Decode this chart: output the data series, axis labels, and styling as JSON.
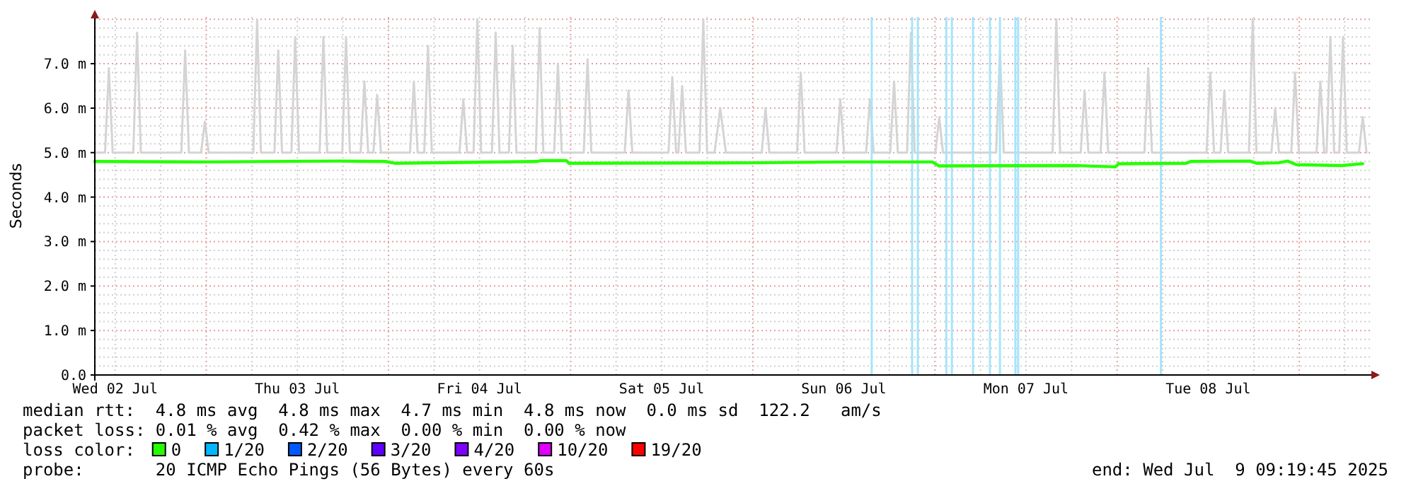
{
  "chart_data": {
    "type": "line",
    "ylabel": "Seconds",
    "legend_title": "loss color:",
    "legend": "bottom",
    "grid": true,
    "xlim": [
      "2025-07-02T09:19",
      "2025-07-09T09:19"
    ],
    "xticks": [
      {
        "value": "2025-07-02T12:00",
        "label": "Wed 02 Jul"
      },
      {
        "value": "2025-07-03T12:00",
        "label": "Thu 03 Jul"
      },
      {
        "value": "2025-07-04T12:00",
        "label": "Fri 04 Jul"
      },
      {
        "value": "2025-07-05T12:00",
        "label": "Sat 05 Jul"
      },
      {
        "value": "2025-07-06T12:00",
        "label": "Sun 06 Jul"
      },
      {
        "value": "2025-07-07T12:00",
        "label": "Mon 07 Jul"
      },
      {
        "value": "2025-07-08T12:00",
        "label": "Tue 08 Jul"
      }
    ],
    "ylim": [
      0,
      8.05
    ],
    "yticks": [
      {
        "value": 0,
        "label": "0.0"
      },
      {
        "value": 1,
        "label": "1.0 m"
      },
      {
        "value": 2,
        "label": "2.0 m"
      },
      {
        "value": 3,
        "label": "3.0 m"
      },
      {
        "value": 4,
        "label": "4.0 m"
      },
      {
        "value": 5,
        "label": "5.0 m"
      },
      {
        "value": 6,
        "label": "6.0 m"
      },
      {
        "value": 7,
        "label": "7.0 m"
      }
    ],
    "series": [
      {
        "color": "#d4d4d4",
        "x": [
          "2025-07-02T09:19",
          "2025-07-02T10:40",
          "2025-07-02T11:10",
          "2025-07-02T11:40",
          "2025-07-02T14:23",
          "2025-07-02T14:53",
          "2025-07-02T15:23",
          "2025-07-02T20:43",
          "2025-07-02T21:13",
          "2025-07-02T21:43",
          "2025-07-02T23:19",
          "2025-07-02T23:49",
          "2025-07-03T00:19",
          "2025-07-03T06:12",
          "2025-07-03T06:42",
          "2025-07-03T07:12",
          "2025-07-03T08:59",
          "2025-07-03T09:29",
          "2025-07-03T09:59",
          "2025-07-03T11:13",
          "2025-07-03T11:43",
          "2025-07-03T12:13",
          "2025-07-03T14:56",
          "2025-07-03T15:26",
          "2025-07-03T15:56",
          "2025-07-03T17:55",
          "2025-07-03T18:25",
          "2025-07-03T18:55",
          "2025-07-03T20:20",
          "2025-07-03T20:50",
          "2025-07-03T21:20",
          "2025-07-03T22:01",
          "2025-07-03T22:31",
          "2025-07-03T23:01",
          "2025-07-04T02:51",
          "2025-07-04T03:21",
          "2025-07-04T03:51",
          "2025-07-04T04:43",
          "2025-07-04T05:13",
          "2025-07-04T05:43",
          "2025-07-04T09:22",
          "2025-07-04T09:52",
          "2025-07-04T10:22",
          "2025-07-04T11:13",
          "2025-07-04T11:43",
          "2025-07-04T12:13",
          "2025-07-04T13:38",
          "2025-07-04T14:08",
          "2025-07-04T14:38",
          "2025-07-04T15:52",
          "2025-07-04T16:22",
          "2025-07-04T16:52",
          "2025-07-04T19:25",
          "2025-07-04T19:55",
          "2025-07-04T20:25",
          "2025-07-04T21:50",
          "2025-07-04T22:20",
          "2025-07-04T22:50",
          "2025-07-05T01:44",
          "2025-07-05T02:14",
          "2025-07-05T02:44",
          "2025-07-05T07:08",
          "2025-07-05T07:38",
          "2025-07-05T08:08",
          "2025-07-05T12:54",
          "2025-07-05T13:24",
          "2025-07-05T13:54",
          "2025-07-05T14:12",
          "2025-07-05T14:42",
          "2025-07-05T15:12",
          "2025-07-05T16:59",
          "2025-07-05T17:29",
          "2025-07-05T17:59",
          "2025-07-05T18:58",
          "2025-07-05T19:43",
          "2025-07-05T20:28",
          "2025-07-06T01:11",
          "2025-07-06T01:41",
          "2025-07-06T02:11",
          "2025-07-06T05:50",
          "2025-07-06T06:20",
          "2025-07-06T06:50",
          "2025-07-06T11:02",
          "2025-07-06T11:32",
          "2025-07-06T12:02",
          "2025-07-06T14:56",
          "2025-07-06T15:26",
          "2025-07-06T15:56",
          "2025-07-06T18:07",
          "2025-07-06T18:37",
          "2025-07-06T19:07",
          "2025-07-06T20:20",
          "2025-07-06T20:50",
          "2025-07-06T21:20",
          "2025-07-07T00:04",
          "2025-07-07T00:34",
          "2025-07-07T01:04",
          "2025-07-07T08:04",
          "2025-07-07T08:34",
          "2025-07-07T09:04",
          "2025-07-07T15:30",
          "2025-07-07T16:00",
          "2025-07-07T16:30",
          "2025-07-07T19:13",
          "2025-07-07T19:43",
          "2025-07-07T20:13",
          "2025-07-07T21:50",
          "2025-07-07T22:20",
          "2025-07-07T22:50",
          "2025-07-08T03:36",
          "2025-07-08T04:06",
          "2025-07-08T04:36",
          "2025-07-08T11:47",
          "2025-07-08T12:17",
          "2025-07-08T12:47",
          "2025-07-08T13:38",
          "2025-07-08T14:08",
          "2025-07-08T14:38",
          "2025-07-08T17:22",
          "2025-07-08T17:52",
          "2025-07-08T18:22",
          "2025-07-08T20:20",
          "2025-07-08T20:50",
          "2025-07-08T21:20",
          "2025-07-08T22:57",
          "2025-07-08T23:27",
          "2025-07-08T23:57",
          "2025-07-09T02:17",
          "2025-07-09T02:47",
          "2025-07-09T03:17",
          "2025-07-09T03:36",
          "2025-07-09T04:06",
          "2025-07-09T04:36",
          "2025-07-09T05:16",
          "2025-07-09T05:46",
          "2025-07-09T06:16",
          "2025-07-09T07:52",
          "2025-07-09T08:22",
          "2025-07-09T08:52"
        ],
        "values": [
          5.0,
          5.0,
          6.9,
          5.0,
          5.0,
          7.7,
          5.0,
          5.0,
          7.3,
          5.0,
          5.0,
          5.7,
          5.0,
          5.0,
          8.0,
          5.0,
          5.0,
          7.3,
          5.0,
          5.0,
          7.6,
          5.0,
          5.0,
          7.6,
          5.0,
          5.0,
          7.6,
          5.0,
          5.0,
          6.6,
          5.0,
          5.0,
          6.3,
          5.0,
          5.0,
          6.6,
          5.0,
          5.0,
          7.4,
          5.0,
          5.0,
          6.2,
          5.0,
          5.0,
          8.0,
          5.0,
          5.0,
          7.7,
          5.0,
          5.0,
          7.4,
          5.0,
          5.0,
          7.8,
          5.0,
          5.0,
          7.0,
          5.0,
          5.0,
          7.1,
          5.0,
          5.0,
          6.4,
          5.0,
          5.0,
          6.7,
          5.0,
          5.0,
          6.5,
          5.0,
          5.0,
          8.0,
          5.0,
          5.0,
          6.0,
          5.0,
          5.0,
          6.0,
          5.0,
          5.0,
          6.8,
          5.0,
          5.0,
          6.2,
          5.0,
          5.0,
          6.2,
          5.0,
          5.0,
          6.6,
          5.0,
          5.0,
          7.7,
          5.0,
          5.0,
          5.8,
          5.0,
          5.0,
          7.3,
          5.0,
          5.0,
          8.0,
          5.0,
          5.0,
          6.4,
          5.0,
          5.0,
          6.8,
          5.0,
          5.0,
          6.9,
          5.0,
          5.0,
          6.8,
          5.0,
          5.0,
          6.4,
          5.0,
          5.0,
          8.0,
          5.0,
          5.0,
          6.0,
          5.0,
          5.0,
          6.8,
          5.0,
          5.0,
          6.6,
          5.0,
          5.0,
          7.6,
          5.0,
          5.0,
          7.6,
          5.0,
          5.0,
          5.8,
          5.0
        ]
      },
      {
        "name": "0",
        "color": "#26ff00",
        "x": [
          "2025-07-02T09:19",
          "2025-07-03T00:00",
          "2025-07-03T17:29",
          "2025-07-03T23:38",
          "2025-07-04T00:56",
          "2025-07-04T19:32",
          "2025-07-04T20:05",
          "2025-07-04T23:26",
          "2025-07-04T23:48",
          "2025-07-05T23:26",
          "2025-07-06T12:28",
          "2025-07-06T23:38",
          "2025-07-07T00:34",
          "2025-07-07T18:14",
          "2025-07-07T23:48",
          "2025-07-08T00:11",
          "2025-07-08T09:07",
          "2025-07-08T09:41",
          "2025-07-08T17:30",
          "2025-07-08T18:25",
          "2025-07-08T21:13",
          "2025-07-08T22:30",
          "2025-07-08T23:37",
          "2025-07-09T05:35",
          "2025-07-09T08:22"
        ],
        "values": [
          4.8,
          4.79,
          4.81,
          4.8,
          4.76,
          4.8,
          4.82,
          4.82,
          4.76,
          4.77,
          4.79,
          4.79,
          4.7,
          4.71,
          4.68,
          4.75,
          4.76,
          4.8,
          4.81,
          4.76,
          4.77,
          4.81,
          4.73,
          4.71,
          4.75
        ]
      },
      {
        "name": "1/20",
        "color": "#00b8ff"
      },
      {
        "name": "2/20",
        "color": "#0059ff"
      },
      {
        "name": "3/20",
        "color": "#5e00ff"
      },
      {
        "name": "4/20",
        "color": "#7e00ff"
      },
      {
        "name": "10/20",
        "color": "#dd00ff"
      },
      {
        "name": "19/20",
        "color": "#ff0000"
      }
    ],
    "ref_lines": [
      {
        "axis": "x",
        "value": "2025-07-06T15:40",
        "color": "#a8e4fa"
      },
      {
        "axis": "x",
        "value": "2025-07-06T21:00",
        "color": "#a8e4fa"
      },
      {
        "axis": "x",
        "value": "2025-07-06T21:45",
        "color": "#a8e4fa"
      },
      {
        "axis": "x",
        "value": "2025-07-07T01:30",
        "color": "#a8e4fa"
      },
      {
        "axis": "x",
        "value": "2025-07-07T02:14",
        "color": "#a8e4fa"
      },
      {
        "axis": "x",
        "value": "2025-07-07T05:01",
        "color": "#a8e4fa"
      },
      {
        "axis": "x",
        "value": "2025-07-07T07:15",
        "color": "#a8e4fa"
      },
      {
        "axis": "x",
        "value": "2025-07-07T08:34",
        "color": "#a8e4fa"
      },
      {
        "axis": "x",
        "value": "2025-07-07T10:36",
        "color": "#a8e4fa"
      },
      {
        "axis": "x",
        "value": "2025-07-07T10:58",
        "color": "#a8e4fa"
      },
      {
        "axis": "x",
        "value": "2025-07-08T05:46",
        "color": "#a8e4fa"
      }
    ],
    "annotations": [
      "median rtt:  4.8 ms avg  4.8 ms max  4.7 ms min  4.8 ms now  0.0 ms sd  122.2   am/s",
      "packet loss: 0.01 % avg  0.42 % max  0.00 % min  0.00 % now",
      "probe:       20 ICMP Echo Pings (56 Bytes) every 60s",
      "end: Wed Jul  9 09:19:45 2025"
    ]
  }
}
